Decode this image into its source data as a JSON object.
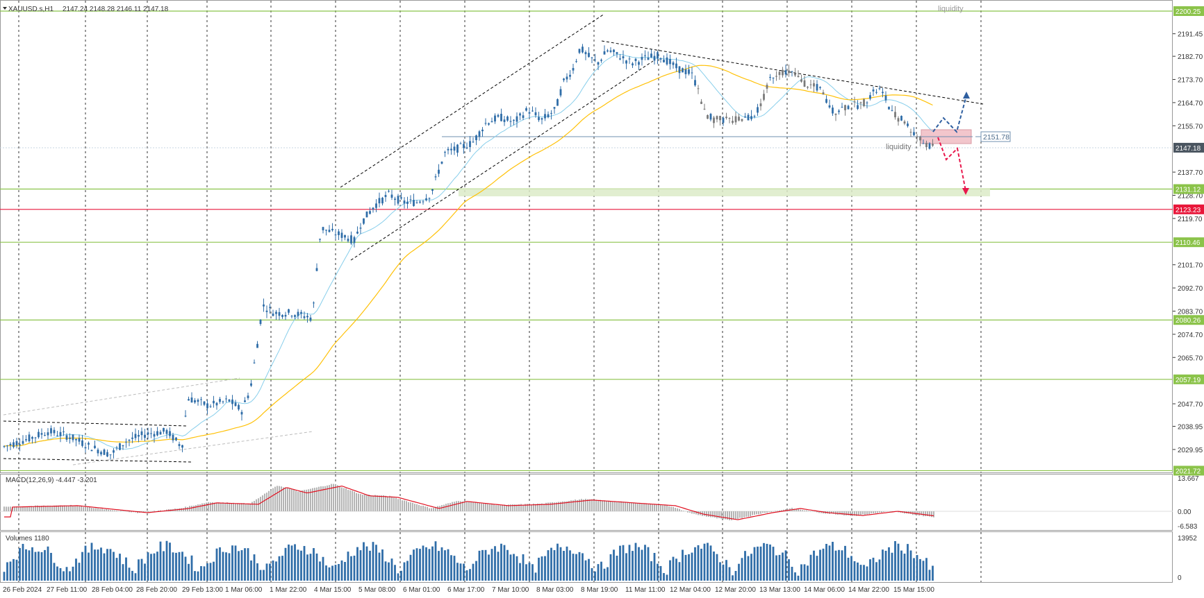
{
  "chart_header": {
    "symbol": "XAUUSD.s,H1",
    "ohlc": "2147.24 2148.28 2146.11 2147.18"
  },
  "annotations": {
    "liquidity_top": "liquidity",
    "liquidity_mid": "liquidity",
    "level_tag": "2151.78"
  },
  "price_axis": {
    "ticks": [
      "2191.45",
      "2182.70",
      "2173.70",
      "2164.70",
      "2155.70",
      "2137.70",
      "2128.70",
      "2119.70",
      "2101.70",
      "2092.70",
      "2083.70",
      "2074.70",
      "2065.70",
      "2047.70",
      "2038.95",
      "2029.95"
    ],
    "tags": [
      {
        "value": "2200.25",
        "color": "#8bc34a"
      },
      {
        "value": "2147.18",
        "color": "#4a5560"
      },
      {
        "value": "2131.12",
        "color": "#8bc34a"
      },
      {
        "value": "2123.23",
        "color": "#e8173a"
      },
      {
        "value": "2110.46",
        "color": "#8bc34a"
      },
      {
        "value": "2080.26",
        "color": "#8bc34a"
      },
      {
        "value": "2057.19",
        "color": "#8bc34a"
      },
      {
        "value": "2021.72",
        "color": "#8bc34a"
      }
    ]
  },
  "time_axis": [
    "26 Feb 2024",
    "27 Feb 11:00",
    "28 Feb 04:00",
    "28 Feb 20:00",
    "29 Feb 13:00",
    "1 Mar 06:00",
    "1 Mar 22:00",
    "4 Mar 15:00",
    "5 Mar 08:00",
    "6 Mar 01:00",
    "6 Mar 17:00",
    "7 Mar 10:00",
    "8 Mar 03:00",
    "8 Mar 19:00",
    "11 Mar 11:00",
    "12 Mar 04:00",
    "12 Mar 20:00",
    "13 Mar 13:00",
    "14 Mar 06:00",
    "14 Mar 22:00",
    "15 Mar 15:00"
  ],
  "macd": {
    "label": "MACD(12,26,9) -4.447 -3.201",
    "ticks": [
      "13.667",
      "0.00",
      "-6.583"
    ]
  },
  "volumes": {
    "label": "Volumes 1180",
    "ticks": [
      "13952",
      "0"
    ]
  },
  "colors": {
    "green_level": "#8bc34a",
    "red_level": "#e8173a",
    "candle": "#2f6da8",
    "ma_fast": "#87ceeb",
    "ma_slow": "#ffc107",
    "macd_signal": "#e01020",
    "macd_hist": "#b4b4b4",
    "volume_bar": "#2f6da8"
  }
}
